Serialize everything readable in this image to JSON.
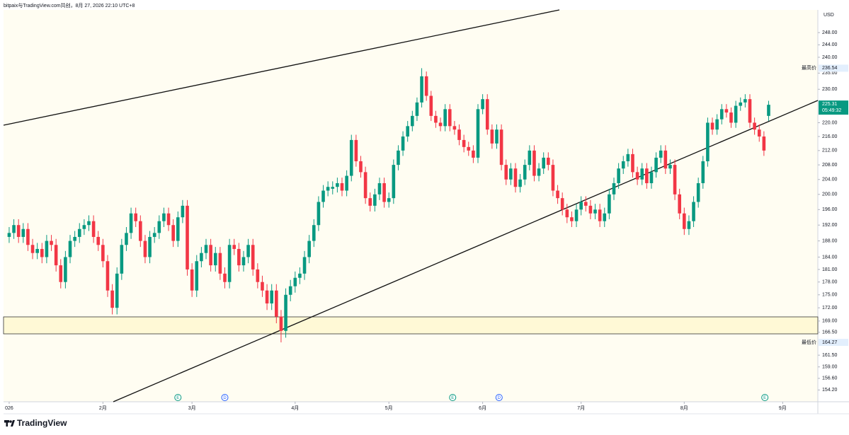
{
  "chart_data": {
    "type": "candlestick",
    "header": "bitpaix与TradingView.com共创，8月 27, 2026 22:10 UTC+8",
    "brand": "TradingView",
    "currency": "USD",
    "log_scale": true,
    "up_color": "#089981",
    "down_color": "#f23645",
    "xlim": [
      -1.2,
      172.5
    ],
    "xticks": [
      {
        "value": 0,
        "label": "026"
      },
      {
        "value": 20,
        "label": "2月"
      },
      {
        "value": 39,
        "label": "3月"
      },
      {
        "value": 61,
        "label": "4月"
      },
      {
        "value": 81,
        "label": "5月"
      },
      {
        "value": 101,
        "label": "6月"
      },
      {
        "value": 122,
        "label": "7月"
      },
      {
        "value": 144,
        "label": "8月"
      },
      {
        "value": 165,
        "label": "9月"
      }
    ],
    "ylim": [
      151.8,
      255.6
    ],
    "yticks": [
      {
        "value": 248,
        "label": "248.00"
      },
      {
        "value": 244,
        "label": "244.00"
      },
      {
        "value": 240,
        "label": "240.00"
      },
      {
        "value": 235,
        "label": "235.00"
      },
      {
        "value": 230,
        "label": "230.00"
      },
      {
        "value": 220,
        "label": "220.00"
      },
      {
        "value": 216,
        "label": "216.00"
      },
      {
        "value": 212,
        "label": "212.00"
      },
      {
        "value": 208,
        "label": "208.00"
      },
      {
        "value": 204,
        "label": "204.00"
      },
      {
        "value": 200,
        "label": "200.00"
      },
      {
        "value": 196,
        "label": "196.00"
      },
      {
        "value": 192,
        "label": "192.00"
      },
      {
        "value": 188,
        "label": "188.00"
      },
      {
        "value": 184,
        "label": "184.00"
      },
      {
        "value": 181,
        "label": "181.00"
      },
      {
        "value": 178,
        "label": "178.00"
      },
      {
        "value": 175,
        "label": "175.00"
      },
      {
        "value": 172,
        "label": "172.00"
      },
      {
        "value": 169,
        "label": "169.00"
      },
      {
        "value": 166.5,
        "label": "166.50"
      },
      {
        "value": 161.5,
        "label": "161.50"
      },
      {
        "value": 159,
        "label": "159.00"
      },
      {
        "value": 156.6,
        "label": "156.60"
      },
      {
        "value": 154.2,
        "label": "154.20"
      }
    ],
    "high_caption": "最高价",
    "low_caption": "最低价",
    "countdown": "05:49:32",
    "events": [
      {
        "label": "E",
        "x": 36
      },
      {
        "label": "D",
        "x": 46
      },
      {
        "label": "E",
        "x": 94.6
      },
      {
        "label": "D",
        "x": 104.5
      },
      {
        "label": "E",
        "x": 161.2
      }
    ],
    "open": [
      189,
      190,
      192,
      189,
      191,
      187,
      185,
      186,
      184,
      188,
      187,
      182,
      178,
      184,
      188,
      189,
      191,
      192,
      193,
      189,
      187,
      183,
      176,
      172,
      180,
      187,
      190,
      195,
      193,
      188,
      184,
      189,
      190,
      193,
      195,
      192,
      188,
      194,
      197,
      181,
      176,
      183,
      185,
      187,
      182,
      185,
      180,
      178,
      187,
      186,
      182,
      184,
      187,
      181,
      178,
      176,
      173,
      176,
      170,
      166.8,
      175,
      177,
      179,
      180,
      184,
      188,
      192,
      198,
      201,
      201.5,
      202,
      203,
      201,
      205,
      215,
      209,
      206,
      199,
      197,
      200,
      203,
      198,
      199,
      208,
      212,
      216,
      219,
      222,
      226,
      234,
      228,
      222,
      220,
      219,
      224,
      219,
      218,
      215,
      213,
      212,
      210,
      224,
      227,
      218,
      214,
      218,
      208,
      204,
      207,
      202,
      204,
      208,
      212,
      205,
      207,
      210,
      208,
      201,
      199,
      196,
      194,
      193,
      196,
      198,
      197,
      195,
      196,
      193,
      195,
      200,
      203,
      207,
      209,
      211,
      206,
      204,
      207,
      203,
      206,
      210,
      212,
      207,
      208,
      200,
      195,
      191,
      193,
      198,
      203,
      209,
      220,
      218,
      221,
      224,
      223,
      220,
      225,
      226,
      227,
      220,
      218,
      216,
      222
    ],
    "high": [
      191.5,
      193.5,
      193.5,
      192.5,
      192.5,
      188.5,
      187.5,
      187.5,
      189.5,
      189.5,
      188.5,
      183.5,
      185.5,
      189.5,
      190.5,
      192.5,
      193.5,
      194.5,
      194.5,
      190.5,
      188.5,
      184.5,
      177.5,
      181.5,
      188.5,
      191.5,
      196.5,
      196.5,
      194.5,
      189.5,
      190.5,
      191.5,
      194.5,
      196.5,
      196.5,
      193.5,
      195.5,
      198.5,
      198.5,
      182.5,
      184.5,
      186.5,
      188.5,
      188.5,
      186.5,
      186.5,
      181.5,
      188.5,
      188.5,
      187.5,
      185.5,
      188.5,
      188.5,
      182.5,
      179.5,
      177.5,
      177.5,
      177.5,
      171.5,
      176.5,
      178.5,
      180.5,
      181.5,
      185.5,
      189.5,
      193.5,
      199.5,
      202.5,
      203.5,
      203.5,
      204.5,
      204.5,
      206.5,
      216.5,
      216.5,
      210.5,
      207.5,
      200.5,
      201.5,
      204.5,
      204.5,
      200.5,
      209.5,
      213.5,
      217.5,
      220.5,
      223.5,
      227.5,
      236.54,
      235.5,
      229.5,
      223.5,
      221.5,
      225.5,
      225.5,
      220.5,
      219.5,
      216.5,
      214.5,
      213.5,
      225.5,
      228.5,
      228.5,
      219.5,
      219.5,
      219.5,
      209.5,
      208.5,
      208.5,
      205.5,
      209.5,
      213.5,
      213.5,
      208.5,
      211.5,
      211.5,
      209.5,
      202.5,
      200.5,
      197.5,
      195.5,
      197.5,
      199.5,
      199.5,
      198.5,
      197.5,
      197.5,
      196.5,
      201.5,
      204.5,
      208.5,
      210.5,
      212.5,
      212.5,
      207.5,
      208.5,
      208.5,
      207.5,
      211.5,
      213.5,
      213.5,
      209.5,
      209.5,
      201.5,
      196.5,
      194.5,
      199.5,
      204.5,
      210.5,
      221.5,
      221.5,
      222.5,
      225.5,
      225.5,
      224.5,
      226.5,
      227.5,
      228.5,
      228.5,
      221.5,
      219.5,
      217.5,
      226.5
    ],
    "low": [
      187.5,
      188.5,
      187.5,
      187.5,
      185.5,
      183.5,
      183.5,
      182.5,
      182.5,
      185.5,
      180.5,
      176.5,
      176.5,
      182.5,
      186.5,
      187.5,
      189.5,
      190.5,
      187.5,
      185.5,
      181.5,
      174.5,
      170.5,
      170.5,
      178.5,
      185.5,
      188.5,
      191.5,
      186.5,
      182.5,
      182.5,
      187.5,
      188.5,
      191.5,
      190.5,
      186.5,
      186.5,
      192.5,
      179.5,
      174.5,
      174.5,
      181.5,
      183.5,
      180.5,
      180.5,
      178.5,
      176.5,
      176.5,
      184.5,
      180.5,
      180.5,
      182.5,
      179.5,
      176.5,
      174.5,
      171.5,
      171.5,
      168.5,
      164.27,
      165.3,
      173.5,
      175.5,
      177.5,
      178.5,
      182.5,
      186.5,
      190.5,
      196.5,
      199.5,
      200,
      200.5,
      199.5,
      199.5,
      203.5,
      207.5,
      204.5,
      197.5,
      195.5,
      195.5,
      198.5,
      196.5,
      196.5,
      197.5,
      206.5,
      210.5,
      214.5,
      217.5,
      220.5,
      224.5,
      226.5,
      220.5,
      218.5,
      217.5,
      217.5,
      217.5,
      216.5,
      213.5,
      211.5,
      210.5,
      208.5,
      208.5,
      222.5,
      216.5,
      212.5,
      212.5,
      206.5,
      202.5,
      202.5,
      200.5,
      200.5,
      202.5,
      206.5,
      203.5,
      203.5,
      205.5,
      206.5,
      199.5,
      197.5,
      194.5,
      192.5,
      191.5,
      191.5,
      194.5,
      195.5,
      193.5,
      193.5,
      191.5,
      191.5,
      193.5,
      198.5,
      201.5,
      205.5,
      207.5,
      204.5,
      202.5,
      202.5,
      201.5,
      201.5,
      204.5,
      208.5,
      205.5,
      205.5,
      198.5,
      193.5,
      189.5,
      189.5,
      191.5,
      196.5,
      201.5,
      207.5,
      216.5,
      216.5,
      219.5,
      221.5,
      218.5,
      218.5,
      223.5,
      224.5,
      218.5,
      216.5,
      214.5,
      210.5,
      220.5
    ],
    "close": [
      190,
      192,
      189,
      191,
      187,
      185,
      186,
      184,
      188,
      187,
      182,
      178,
      184,
      188,
      189,
      191,
      192,
      193,
      189,
      187,
      183,
      176,
      172,
      180,
      187,
      190,
      195,
      193,
      188,
      184,
      189,
      190,
      193,
      195,
      192,
      188,
      194,
      197,
      181,
      176,
      183,
      185,
      187,
      182,
      185,
      180,
      178,
      187,
      186,
      182,
      184,
      187,
      181,
      178,
      176,
      173,
      176,
      170,
      166.8,
      175,
      177,
      179,
      180,
      184,
      188,
      192,
      198,
      201,
      202,
      202,
      203,
      201,
      205,
      215,
      209,
      206,
      199,
      197,
      200,
      203,
      198,
      199,
      208,
      212,
      216,
      219,
      222,
      226,
      234,
      228,
      222,
      220,
      219,
      224,
      219,
      218,
      215,
      213,
      212,
      210,
      224,
      227,
      218,
      214,
      218,
      208,
      204,
      207,
      202,
      204,
      208,
      212,
      205,
      207,
      210,
      208,
      201,
      199,
      196,
      194,
      193,
      196,
      198,
      197,
      195,
      196,
      193,
      195,
      200,
      203,
      207,
      209,
      211,
      206,
      204,
      207,
      203,
      206,
      210,
      212,
      207,
      208,
      200,
      195,
      191,
      193,
      198,
      203,
      209,
      220,
      218,
      221,
      224,
      223,
      220,
      225,
      226,
      227,
      220,
      218,
      216,
      212,
      225.31
    ]
  }
}
